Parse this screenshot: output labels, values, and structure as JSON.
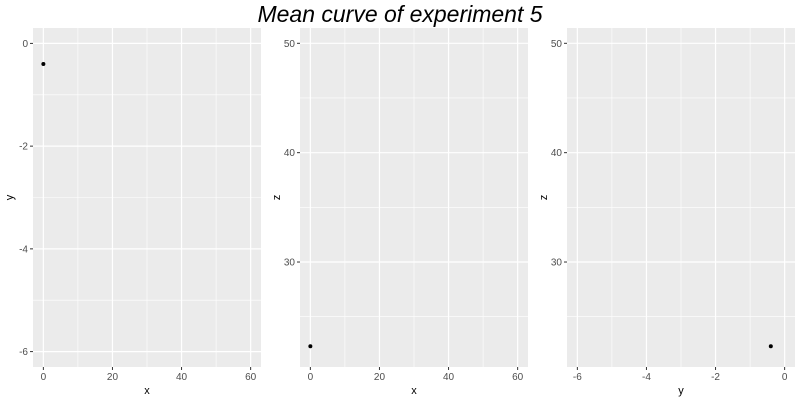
{
  "title": "Mean curve of experiment 5",
  "style": {
    "panel_bg": "#ebebeb",
    "grid_major": "#ffffff",
    "grid_minor": "#f5f5f5",
    "point_color": "#000000",
    "tick_label_color": "#4d4d4d"
  },
  "chart_data": [
    {
      "type": "scatter",
      "xlabel": "x",
      "ylabel": "y",
      "xlim": [
        -3,
        63
      ],
      "ylim": [
        -6.3,
        0.3
      ],
      "xticks": [
        0,
        20,
        40,
        60
      ],
      "yticks": [
        0,
        -2,
        -4,
        -6
      ],
      "grid": true,
      "points": [
        {
          "x": 0,
          "y": -0.4
        }
      ]
    },
    {
      "type": "scatter",
      "xlabel": "x",
      "ylabel": "z",
      "xlim": [
        -3,
        63
      ],
      "ylim": [
        20.4,
        51.4
      ],
      "xticks": [
        0,
        20,
        40,
        60
      ],
      "yticks": [
        30,
        40,
        50
      ],
      "grid": true,
      "points": [
        {
          "x": 0,
          "y": 22.3
        }
      ]
    },
    {
      "type": "scatter",
      "xlabel": "y",
      "ylabel": "z",
      "xlim": [
        -6.3,
        0.3
      ],
      "ylim": [
        20.4,
        51.4
      ],
      "xticks": [
        -6,
        -4,
        -2,
        0
      ],
      "yticks": [
        30,
        40,
        50
      ],
      "grid": true,
      "points": [
        {
          "x": -0.4,
          "y": 22.3
        }
      ]
    }
  ]
}
